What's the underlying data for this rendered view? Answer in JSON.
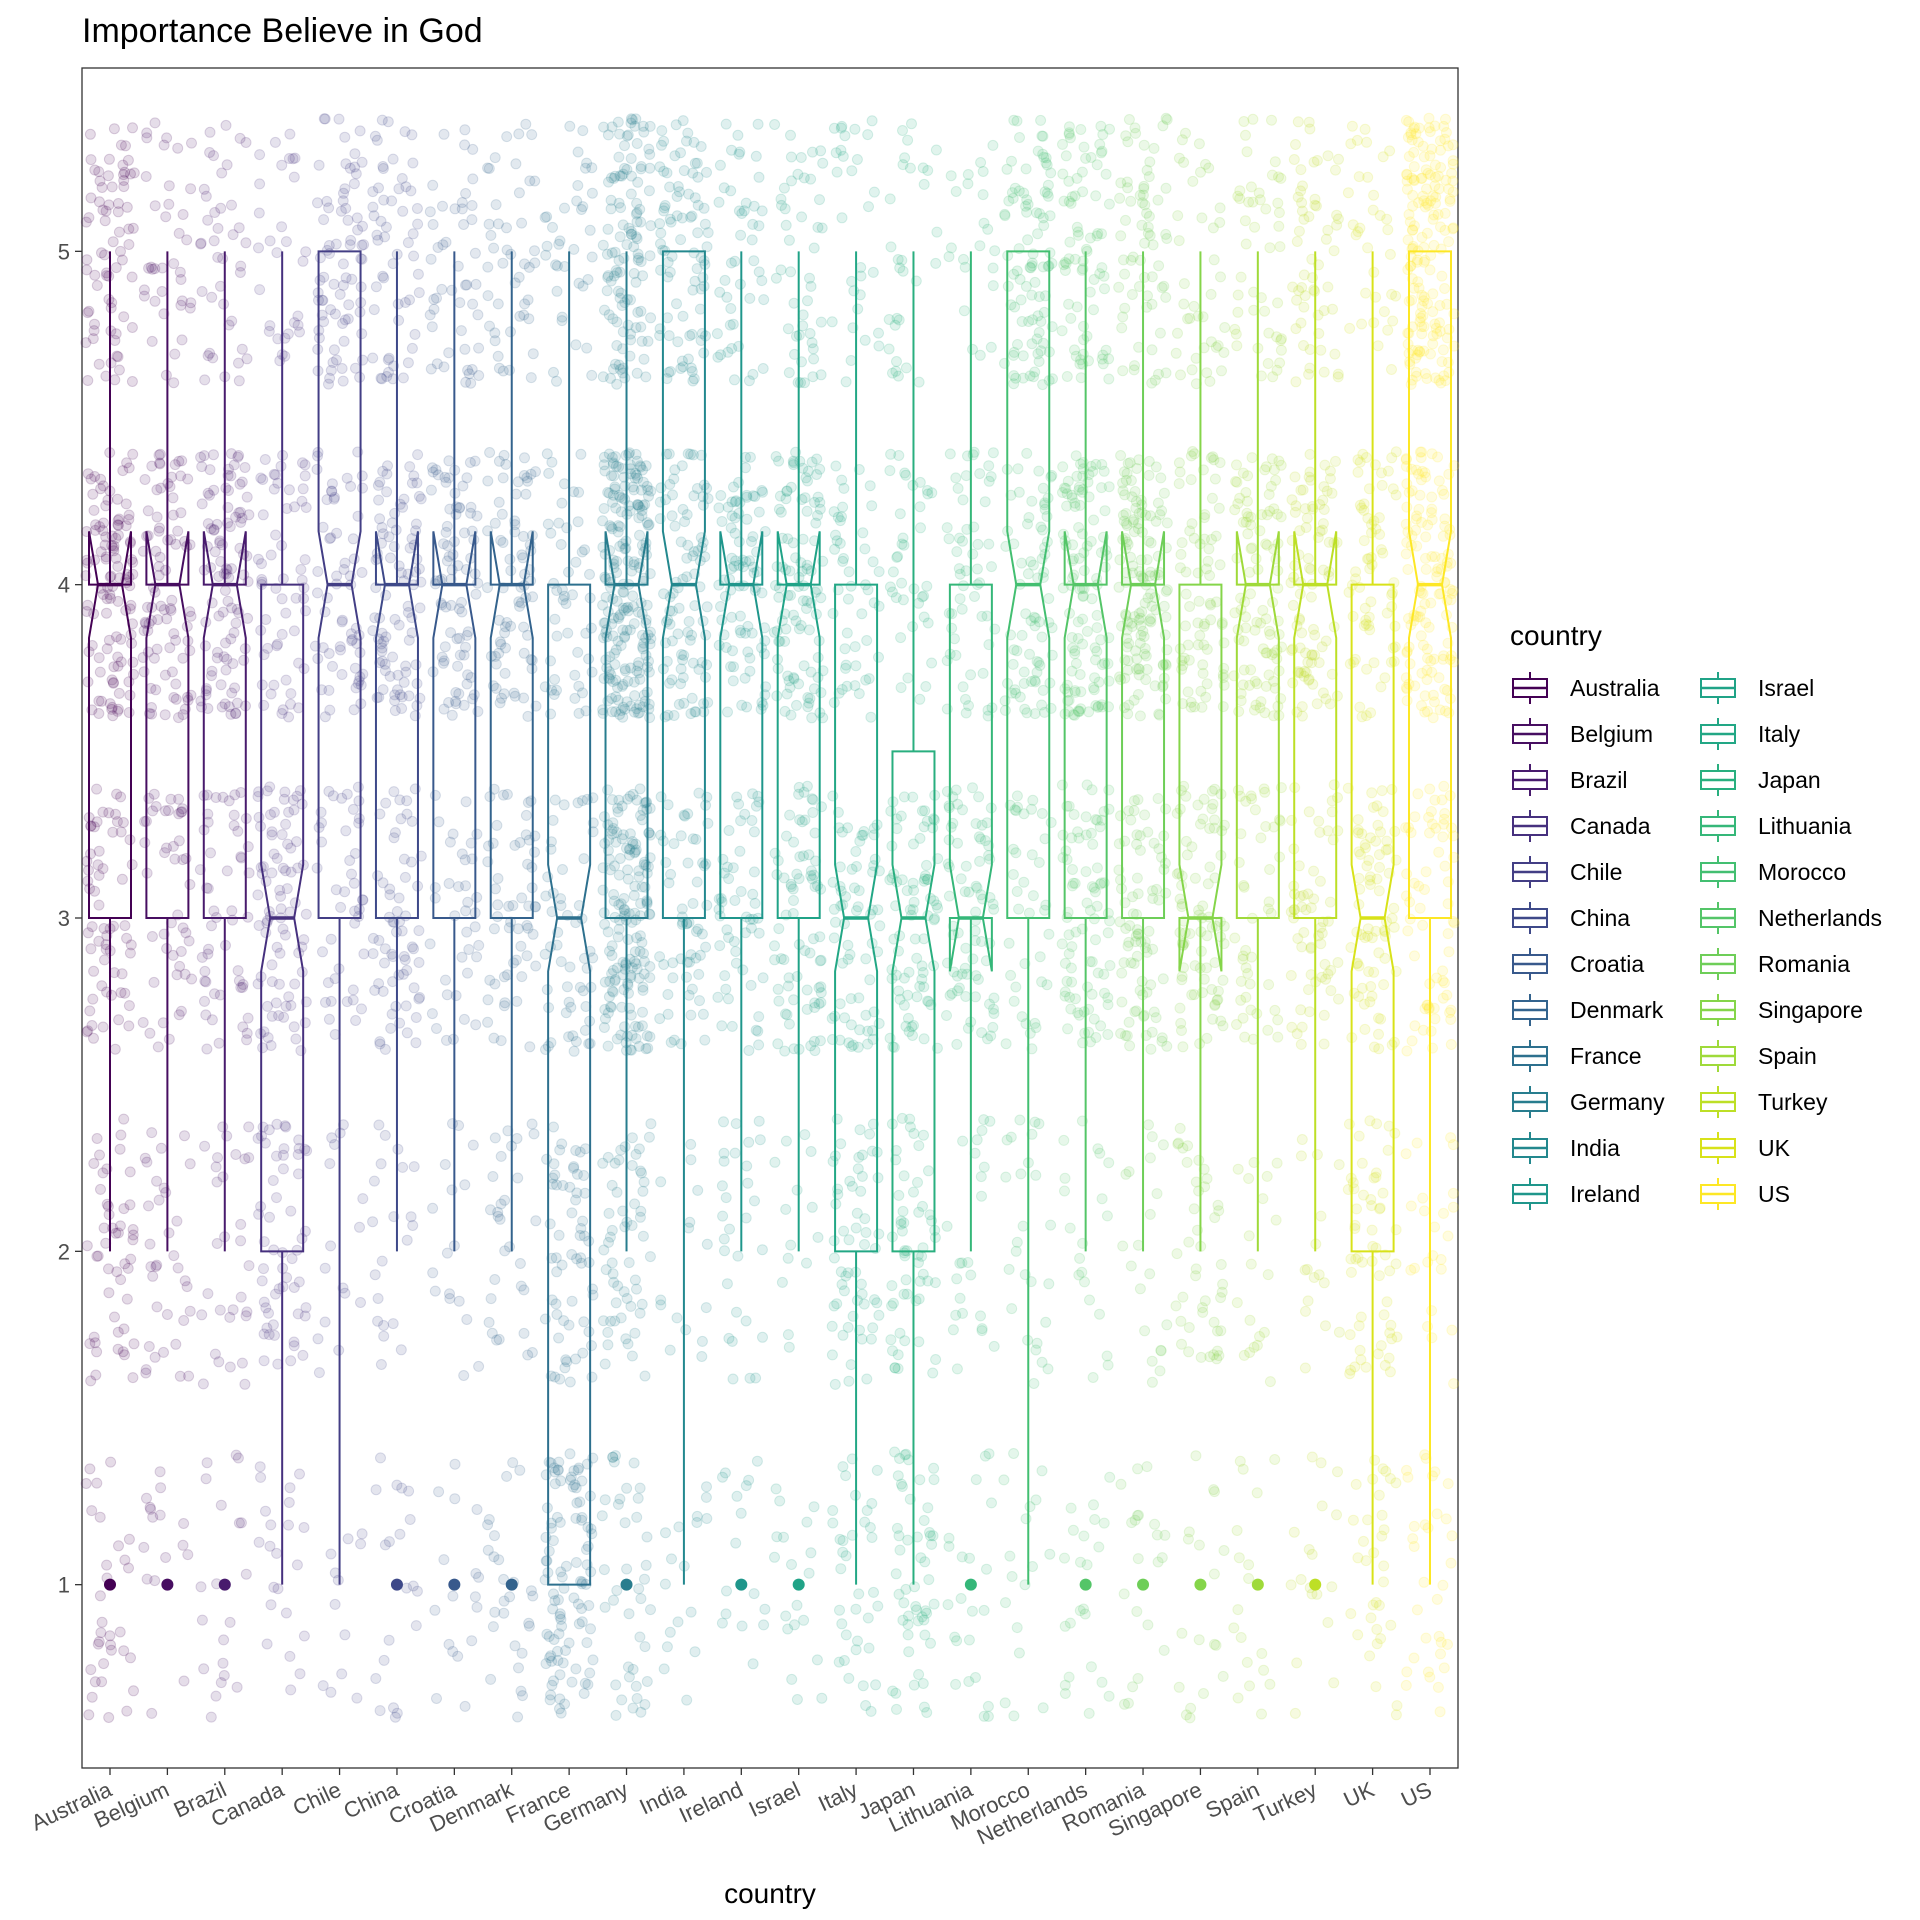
{
  "chart_data": {
    "type": "boxplot",
    "title": "Importance Believe in God",
    "xlabel": "country",
    "ylabel": "",
    "ylim": [
      0.45,
      5.55
    ],
    "y_ticks": [
      "1",
      "2",
      "3",
      "4",
      "5"
    ],
    "grid": false,
    "legend": {
      "title": "country",
      "placement": "right",
      "columns": 2
    },
    "categories": [
      "Australia",
      "Belgium",
      "Brazil",
      "Canada",
      "Chile",
      "China",
      "Croatia",
      "Denmark",
      "France",
      "Germany",
      "India",
      "Ireland",
      "Israel",
      "Italy",
      "Japan",
      "Lithuania",
      "Morocco",
      "Netherlands",
      "Romania",
      "Singapore",
      "Spain",
      "Turkey",
      "UK",
      "US"
    ],
    "colors": [
      "#440154",
      "#470e61",
      "#481b6d",
      "#46307e",
      "#433e85",
      "#3e4989",
      "#38598c",
      "#33638d",
      "#2d708e",
      "#287d8e",
      "#23888e",
      "#1f968b",
      "#20a387",
      "#22a785",
      "#29af7f",
      "#35b779",
      "#43bf71",
      "#54c568",
      "#6ece58",
      "#85d54a",
      "#9fda3a",
      "#bddf26",
      "#d8e219",
      "#fde725"
    ],
    "boxes": [
      {
        "q1": 3,
        "median": 4,
        "q3": 4,
        "whisker_low": 2,
        "whisker_high": 5,
        "outliers": [
          1
        ]
      },
      {
        "q1": 3,
        "median": 4,
        "q3": 4,
        "whisker_low": 2,
        "whisker_high": 5,
        "outliers": [
          1
        ]
      },
      {
        "q1": 3,
        "median": 4,
        "q3": 4,
        "whisker_low": 2,
        "whisker_high": 5,
        "outliers": [
          1
        ]
      },
      {
        "q1": 2,
        "median": 3,
        "q3": 4,
        "whisker_low": 1,
        "whisker_high": 5,
        "outliers": []
      },
      {
        "q1": 3,
        "median": 4,
        "q3": 5,
        "whisker_low": 1,
        "whisker_high": 5,
        "outliers": []
      },
      {
        "q1": 3,
        "median": 4,
        "q3": 4,
        "whisker_low": 2,
        "whisker_high": 5,
        "outliers": [
          1
        ]
      },
      {
        "q1": 3,
        "median": 4,
        "q3": 4,
        "whisker_low": 2,
        "whisker_high": 5,
        "outliers": [
          1
        ]
      },
      {
        "q1": 3,
        "median": 4,
        "q3": 4,
        "whisker_low": 2,
        "whisker_high": 5,
        "outliers": [
          1
        ]
      },
      {
        "q1": 1,
        "median": 3,
        "q3": 4,
        "whisker_low": 1,
        "whisker_high": 5,
        "outliers": []
      },
      {
        "q1": 3,
        "median": 4,
        "q3": 4,
        "whisker_low": 2,
        "whisker_high": 5,
        "outliers": [
          1
        ]
      },
      {
        "q1": 3,
        "median": 4,
        "q3": 5,
        "whisker_low": 1,
        "whisker_high": 5,
        "outliers": []
      },
      {
        "q1": 3,
        "median": 4,
        "q3": 4,
        "whisker_low": 2,
        "whisker_high": 5,
        "outliers": [
          1
        ]
      },
      {
        "q1": 3,
        "median": 4,
        "q3": 4,
        "whisker_low": 2,
        "whisker_high": 5,
        "outliers": [
          1
        ]
      },
      {
        "q1": 2,
        "median": 3,
        "q3": 4,
        "whisker_low": 1,
        "whisker_high": 5,
        "outliers": []
      },
      {
        "q1": 2,
        "median": 3,
        "q3": 3.5,
        "whisker_low": 1,
        "whisker_high": 5,
        "outliers": []
      },
      {
        "q1": 3,
        "median": 3,
        "q3": 4,
        "whisker_low": 2,
        "whisker_high": 5,
        "outliers": [
          1
        ]
      },
      {
        "q1": 3,
        "median": 4,
        "q3": 5,
        "whisker_low": 1,
        "whisker_high": 5,
        "outliers": []
      },
      {
        "q1": 3,
        "median": 4,
        "q3": 4,
        "whisker_low": 2,
        "whisker_high": 5,
        "outliers": [
          1
        ]
      },
      {
        "q1": 3,
        "median": 4,
        "q3": 4,
        "whisker_low": 2,
        "whisker_high": 5,
        "outliers": [
          1
        ]
      },
      {
        "q1": 3,
        "median": 3,
        "q3": 4,
        "whisker_low": 2,
        "whisker_high": 5,
        "outliers": [
          1
        ]
      },
      {
        "q1": 3,
        "median": 4,
        "q3": 4,
        "whisker_low": 2,
        "whisker_high": 5,
        "outliers": [
          1
        ]
      },
      {
        "q1": 3,
        "median": 4,
        "q3": 4,
        "whisker_low": 2,
        "whisker_high": 5,
        "outliers": [
          1
        ]
      },
      {
        "q1": 2,
        "median": 3,
        "q3": 4,
        "whisker_low": 1,
        "whisker_high": 5,
        "outliers": []
      },
      {
        "q1": 3,
        "median": 4,
        "q3": 5,
        "whisker_low": 1,
        "whisker_high": 5,
        "outliers": []
      }
    ],
    "jitter_weights": [
      [
        0.1,
        0.16,
        0.18,
        0.36,
        0.2
      ],
      [
        0.08,
        0.12,
        0.22,
        0.4,
        0.18
      ],
      [
        0.08,
        0.12,
        0.26,
        0.36,
        0.18
      ],
      [
        0.12,
        0.26,
        0.3,
        0.22,
        0.1
      ],
      [
        0.06,
        0.08,
        0.18,
        0.3,
        0.38
      ],
      [
        0.06,
        0.1,
        0.22,
        0.38,
        0.24
      ],
      [
        0.06,
        0.08,
        0.22,
        0.42,
        0.22
      ],
      [
        0.08,
        0.14,
        0.24,
        0.36,
        0.18
      ],
      [
        0.3,
        0.2,
        0.22,
        0.18,
        0.1
      ],
      [
        0.06,
        0.1,
        0.26,
        0.36,
        0.22
      ],
      [
        0.04,
        0.06,
        0.2,
        0.36,
        0.34
      ],
      [
        0.08,
        0.1,
        0.22,
        0.4,
        0.2
      ],
      [
        0.06,
        0.08,
        0.22,
        0.4,
        0.24
      ],
      [
        0.16,
        0.26,
        0.26,
        0.2,
        0.12
      ],
      [
        0.18,
        0.28,
        0.28,
        0.16,
        0.1
      ],
      [
        0.1,
        0.14,
        0.36,
        0.26,
        0.14
      ],
      [
        0.06,
        0.1,
        0.18,
        0.3,
        0.36
      ],
      [
        0.06,
        0.08,
        0.22,
        0.42,
        0.22
      ],
      [
        0.06,
        0.08,
        0.24,
        0.4,
        0.22
      ],
      [
        0.08,
        0.14,
        0.3,
        0.32,
        0.16
      ],
      [
        0.06,
        0.08,
        0.22,
        0.4,
        0.24
      ],
      [
        0.06,
        0.08,
        0.22,
        0.42,
        0.22
      ],
      [
        0.12,
        0.24,
        0.3,
        0.22,
        0.12
      ],
      [
        0.06,
        0.08,
        0.16,
        0.3,
        0.4
      ]
    ],
    "jitter_counts": [
      330,
      220,
      240,
      250,
      210,
      250,
      200,
      230,
      300,
      600,
      270,
      230,
      260,
      240,
      260,
      200,
      250,
      320,
      330,
      260,
      230,
      240,
      270,
      420
    ]
  }
}
